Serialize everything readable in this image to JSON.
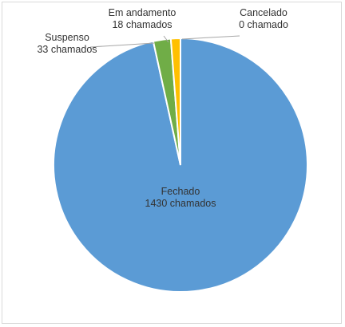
{
  "chart_data": {
    "type": "pie",
    "title": "",
    "slices": [
      {
        "label": "Fechado",
        "value": 1430,
        "value_text": "1430 chamados",
        "color": "#5b9bd5"
      },
      {
        "label": "Suspenso",
        "value": 33,
        "value_text": "33 chamados",
        "color": "#70ad47"
      },
      {
        "label": "Em andamento",
        "value": 18,
        "value_text": "18 chamados",
        "color": "#ffc000"
      },
      {
        "label": "Cancelado",
        "value": 0,
        "value_text": "0 chamado",
        "color": "#a5a5a5"
      }
    ],
    "start_angle_deg": 0,
    "direction": "clockwise",
    "legend": "none",
    "label_placement": "inside-largest, outside-with-leaders-for-small"
  },
  "colors": {
    "slice_border": "#ffffff",
    "frame": "#d9d9d9",
    "label_text": "#333333",
    "leader_line": "#a6a6a6"
  }
}
